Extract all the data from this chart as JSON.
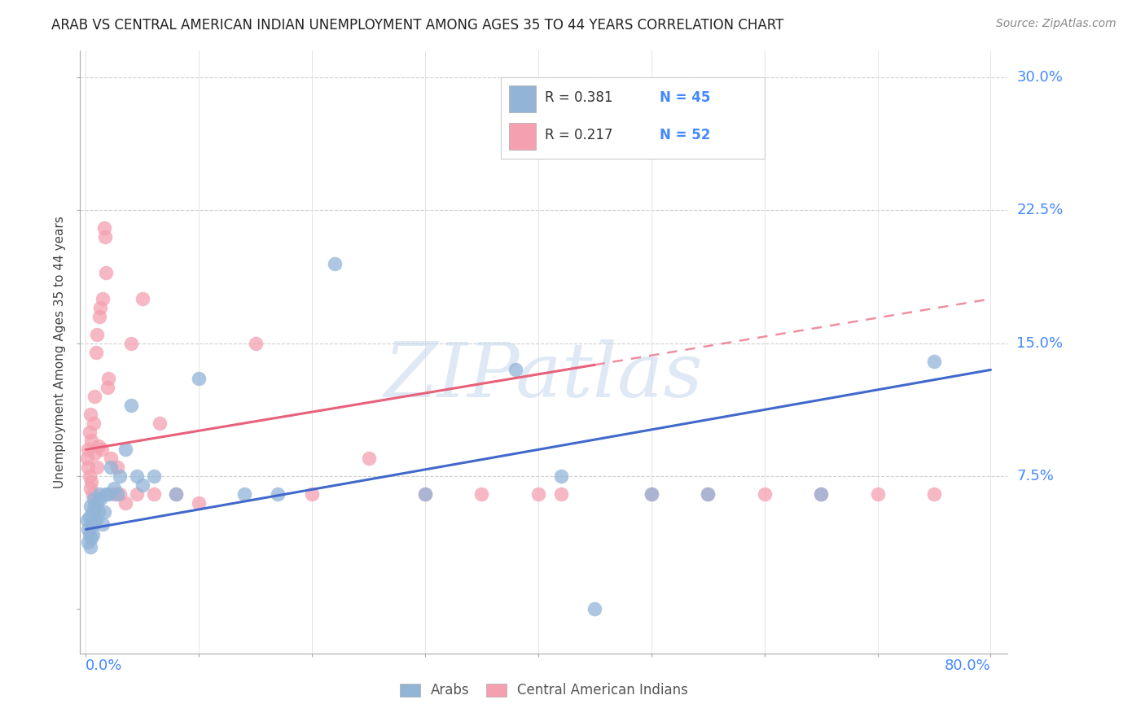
{
  "title": "ARAB VS CENTRAL AMERICAN INDIAN UNEMPLOYMENT AMONG AGES 35 TO 44 YEARS CORRELATION CHART",
  "source": "Source: ZipAtlas.com",
  "ylabel": "Unemployment Among Ages 35 to 44 years",
  "blue_color": "#92B4D7",
  "pink_color": "#F4A0B0",
  "blue_line_color": "#4169CC",
  "pink_line_color": "#E8607A",
  "pink_dash_color": "#F4A0B0",
  "watermark_color": "#C5D8EE",
  "blue_label_color": "#4488FF",
  "legend_r1": "R = 0.381",
  "legend_n1": "N = 45",
  "legend_r2": "R = 0.217",
  "legend_n2": "N = 52",
  "arab_x": [
    0.001,
    0.002,
    0.002,
    0.003,
    0.003,
    0.004,
    0.004,
    0.005,
    0.005,
    0.006,
    0.006,
    0.007,
    0.007,
    0.008,
    0.009,
    0.01,
    0.011,
    0.012,
    0.013,
    0.015,
    0.016,
    0.018,
    0.02,
    0.022,
    0.025,
    0.028,
    0.03,
    0.035,
    0.04,
    0.045,
    0.05,
    0.06,
    0.08,
    0.1,
    0.14,
    0.17,
    0.22,
    0.3,
    0.38,
    0.42,
    0.45,
    0.5,
    0.55,
    0.65,
    0.75
  ],
  "arab_y": [
    0.05,
    0.045,
    0.038,
    0.052,
    0.042,
    0.058,
    0.035,
    0.048,
    0.04,
    0.055,
    0.042,
    0.062,
    0.048,
    0.058,
    0.05,
    0.06,
    0.055,
    0.065,
    0.062,
    0.048,
    0.055,
    0.065,
    0.065,
    0.08,
    0.068,
    0.065,
    0.075,
    0.09,
    0.115,
    0.075,
    0.07,
    0.075,
    0.065,
    0.13,
    0.065,
    0.065,
    0.195,
    0.065,
    0.135,
    0.075,
    0.0,
    0.065,
    0.065,
    0.065,
    0.14
  ],
  "central_x": [
    0.001,
    0.002,
    0.002,
    0.003,
    0.003,
    0.004,
    0.004,
    0.005,
    0.005,
    0.006,
    0.007,
    0.008,
    0.008,
    0.009,
    0.01,
    0.01,
    0.011,
    0.012,
    0.013,
    0.014,
    0.015,
    0.016,
    0.017,
    0.018,
    0.019,
    0.02,
    0.022,
    0.025,
    0.028,
    0.03,
    0.035,
    0.04,
    0.045,
    0.05,
    0.06,
    0.065,
    0.08,
    0.1,
    0.15,
    0.2,
    0.25,
    0.3,
    0.35,
    0.38,
    0.4,
    0.42,
    0.5,
    0.55,
    0.6,
    0.65,
    0.7,
    0.75
  ],
  "central_y": [
    0.085,
    0.09,
    0.08,
    0.1,
    0.075,
    0.11,
    0.068,
    0.095,
    0.072,
    0.065,
    0.105,
    0.12,
    0.088,
    0.145,
    0.08,
    0.155,
    0.092,
    0.165,
    0.17,
    0.09,
    0.175,
    0.215,
    0.21,
    0.19,
    0.125,
    0.13,
    0.085,
    0.065,
    0.08,
    0.065,
    0.06,
    0.15,
    0.065,
    0.175,
    0.065,
    0.105,
    0.065,
    0.06,
    0.15,
    0.065,
    0.085,
    0.065,
    0.065,
    0.28,
    0.065,
    0.065,
    0.065,
    0.065,
    0.065,
    0.065,
    0.065,
    0.065
  ],
  "xlim": [
    0.0,
    0.8
  ],
  "ylim": [
    0.0,
    0.305
  ],
  "yticks": [
    0.0,
    0.075,
    0.15,
    0.225,
    0.3
  ],
  "ytick_labels": [
    "",
    "7.5%",
    "15.0%",
    "22.5%",
    "30.0%"
  ],
  "xticks": [
    0.0,
    0.1,
    0.2,
    0.3,
    0.4,
    0.5,
    0.6,
    0.7,
    0.8
  ]
}
